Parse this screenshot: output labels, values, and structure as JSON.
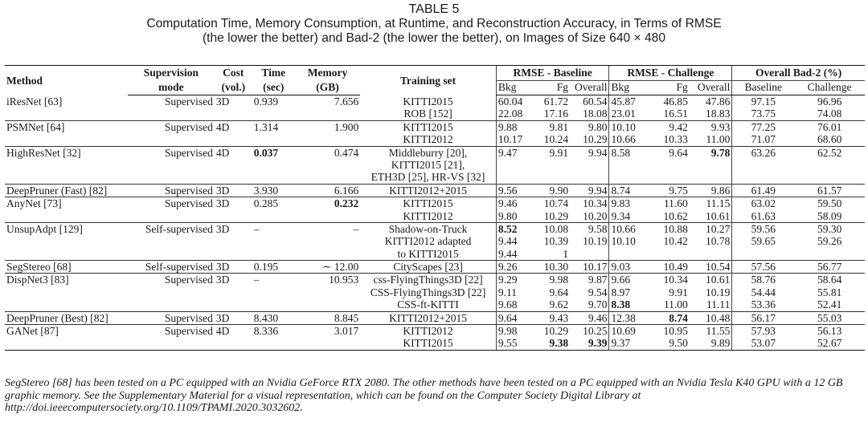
{
  "caption": {
    "label": "TABLE 5",
    "line1": "Computation Time, Memory Consumption, at Runtime, and Reconstruction Accuracy, in Terms of RMSE",
    "line2": "(the lower the better) and Bad-2 (the lower the better), on Images of Size 640 × 480"
  },
  "header": {
    "method": "Method",
    "supervision1": "Supervision",
    "supervision2": "mode",
    "cost1": "Cost",
    "cost2": "(vol.)",
    "time1": "Time",
    "time2": "(sec)",
    "memory1": "Memory",
    "memory2": "(GB)",
    "training": "Training set",
    "rmse_baseline": "RMSE - Baseline",
    "rmse_challenge": "RMSE - Challenge",
    "bad2": "Overall Bad-2 (%)",
    "bkg": "Bkg",
    "fg": "Fg",
    "overall": "Overall",
    "baseline": "Baseline",
    "challenge": "Challenge"
  },
  "rows": [
    {
      "method": "iResNet [63]",
      "sup": "Supervised",
      "cost": "3D",
      "time": "0.939",
      "mem": "7.656",
      "train": "KITTI2015",
      "bb": "60.04",
      "bf": "61.72",
      "bo": "60.54",
      "cb": "45.87",
      "cf": "46.85",
      "co": "47.86",
      "b2b": "97.15",
      "b2c": "96.96"
    },
    {
      "method": "",
      "sup": "",
      "cost": "",
      "time": "",
      "mem": "",
      "train": "ROB [152]",
      "bb": "22.08",
      "bf": "17.16",
      "bo": "18.08",
      "cb": "23.01",
      "cf": "16.51",
      "co": "18.83",
      "b2b": "73.75",
      "b2c": "74.08"
    },
    {
      "method": "PSMNet [64]",
      "sup": "Supervised",
      "cost": "4D",
      "time": "1.314",
      "mem": "1.900",
      "train": "KITTI2015",
      "bb": "9.88",
      "bf": "9.81",
      "bo": "9.80",
      "cb": "10.10",
      "cf": "9.42",
      "co": "9.93",
      "b2b": "77.25",
      "b2c": "76.01"
    },
    {
      "method": "",
      "sup": "",
      "cost": "",
      "time": "",
      "mem": "",
      "train": "KITTI2012",
      "bb": "10.17",
      "bf": "10.24",
      "bo": "10.29",
      "cb": "10.66",
      "cf": "10.33",
      "co": "11.00",
      "b2b": "71.07",
      "b2c": "68.60"
    },
    {
      "method": "HighResNet [32]",
      "sup": "Supervised",
      "cost": "4D",
      "time": "0.037",
      "mem": "0.474",
      "train": "Middleburry [20],",
      "bb": "9.47",
      "bf": "9.91",
      "bo": "9.94",
      "cb": "8.58",
      "cf": "9.64",
      "co": "9.78",
      "b2b": "63.26",
      "b2c": "62.52"
    },
    {
      "method": "",
      "sup": "",
      "cost": "",
      "time": "",
      "mem": "",
      "train": "KITTI2015 [21],",
      "bb": "",
      "bf": "",
      "bo": "",
      "cb": "",
      "cf": "",
      "co": "",
      "b2b": "",
      "b2c": ""
    },
    {
      "method": "",
      "sup": "",
      "cost": "",
      "time": "",
      "mem": "",
      "train": "ETH3D [25], HR-VS [32]",
      "bb": "",
      "bf": "",
      "bo": "",
      "cb": "",
      "cf": "",
      "co": "",
      "b2b": "",
      "b2c": ""
    },
    {
      "method": "DeepPruner (Fast) [82]",
      "sup": "Supervised",
      "cost": "3D",
      "time": "3.930",
      "mem": "6.166",
      "train": "KITTI2012+2015",
      "bb": "9.56",
      "bf": "9.90",
      "bo": "9.94",
      "cb": "8.74",
      "cf": "9.75",
      "co": "9.86",
      "b2b": "61.49",
      "b2c": "61.57"
    },
    {
      "method": "AnyNet [73]",
      "sup": "Supervised",
      "cost": "3D",
      "time": "0.285",
      "mem": "0.232",
      "train": "KITTI2015",
      "bb": "9.46",
      "bf": "10.74",
      "bo": "10.34",
      "cb": "9.83",
      "cf": "11.60",
      "co": "11.15",
      "b2b": "63.02",
      "b2c": "59.50"
    },
    {
      "method": "",
      "sup": "",
      "cost": "",
      "time": "",
      "mem": "",
      "train": "KITTI2012",
      "bb": "9.80",
      "bf": "10.29",
      "bo": "10.20",
      "cb": "9.34",
      "cf": "10.62",
      "co": "10.61",
      "b2b": "61.63",
      "b2c": "58.09"
    },
    {
      "method": "UnsupAdpt [129]",
      "sup": "Self-supervised",
      "cost": "3D",
      "time": "–",
      "mem": "–",
      "train": "Shadow-on-Truck",
      "bb": "8.52",
      "bf": "10.08",
      "bo": "9.58",
      "cb": "10.66",
      "cf": "10.88",
      "co": "10.27",
      "b2b": "59.56",
      "b2c": "59.30"
    },
    {
      "method": "",
      "sup": "",
      "cost": "",
      "time": "",
      "mem": "",
      "train": "KITTI2012 adapted",
      "bb": "9.44",
      "bf": "10.39",
      "bo": "10.19",
      "cb": "10.10",
      "cf": "10.42",
      "co": "10.78",
      "b2b": "59.65",
      "b2c": "59.26"
    },
    {
      "method": "",
      "sup": "",
      "cost": "",
      "time": "",
      "mem": "",
      "train": "to KITTI2015",
      "bb": "9.44",
      "bf": "1",
      "bo": "",
      "cb": "",
      "cf": "",
      "co": "",
      "b2b": "",
      "b2c": ""
    },
    {
      "method": "SegStereo [68]",
      "sup": "Self-supervised",
      "cost": "3D",
      "time": "0.195",
      "mem": "∼ 12.00",
      "train": "CityScapes [23]",
      "bb": "9.26",
      "bf": "10.30",
      "bo": "10.17",
      "cb": "9.03",
      "cf": "10.49",
      "co": "10.54",
      "b2b": "57.56",
      "b2c": "56.77"
    },
    {
      "method": "DispNet3 [83]",
      "sup": "Supervised",
      "cost": "3D",
      "time": "–",
      "mem": "10.953",
      "train": "css-FlyingThings3D [22]",
      "bb": "9.29",
      "bf": "9.98",
      "bo": "9.87",
      "cb": "9.66",
      "cf": "10.34",
      "co": "10.61",
      "b2b": "58.76",
      "b2c": "58.64"
    },
    {
      "method": "",
      "sup": "",
      "cost": "",
      "time": "",
      "mem": "",
      "train": "CSS-FlyingThings3D [22]",
      "bb": "9.11",
      "bf": "9.64",
      "bo": "9.54",
      "cb": "8.97",
      "cf": "9.91",
      "co": "10.19",
      "b2b": "54.44",
      "b2c": "55.81"
    },
    {
      "method": "",
      "sup": "",
      "cost": "",
      "time": "",
      "mem": "",
      "train": "CSS-ft-KITTI",
      "bb": "9.68",
      "bf": "9.62",
      "bo": "9.70",
      "cb": "8.38",
      "cf": "11.00",
      "co": "11.11",
      "b2b": "53.36",
      "b2c": "52.41"
    },
    {
      "method": "DeepPruner (Best) [82]",
      "sup": "Supervised",
      "cost": "3D",
      "time": "8.430",
      "mem": "8.845",
      "train": "KITTI2012+2015",
      "bb": "9.64",
      "bf": "9.43",
      "bo": "9.46",
      "cb": "12.38",
      "cf": "8.74",
      "co": "10.48",
      "b2b": "56.17",
      "b2c": "55.03"
    },
    {
      "method": "GANet [87]",
      "sup": "Supervised",
      "cost": "4D",
      "time": "8.336",
      "mem": "3.017",
      "train": "KITTI2012",
      "bb": "9.98",
      "bf": "10.29",
      "bo": "10.25",
      "cb": "10.69",
      "cf": "10.95",
      "co": "11.55",
      "b2b": "57.93",
      "b2c": "56.13"
    },
    {
      "method": "",
      "sup": "",
      "cost": "",
      "time": "",
      "mem": "",
      "train": "KITTI2015",
      "bb": "9.55",
      "bf": "9.38",
      "bo": "9.39",
      "cb": "9.37",
      "cf": "9.50",
      "co": "9.89",
      "b2b": "53.07",
      "b2c": "52.67"
    }
  ],
  "footnote": "SegStereo [68] has been tested on a PC equipped with an Nvidia GeForce RTX 2080. The other methods have been tested on a PC equipped with an Nvidia Tesla K40 GPU with a 12 GB graphic memory. See the Supplementary Material for a visual representation, which can be found on the Computer Society Digital Library at http://doi.ieeecomputersociety.org/10.1109/TPAMI.2020.3032602."
}
